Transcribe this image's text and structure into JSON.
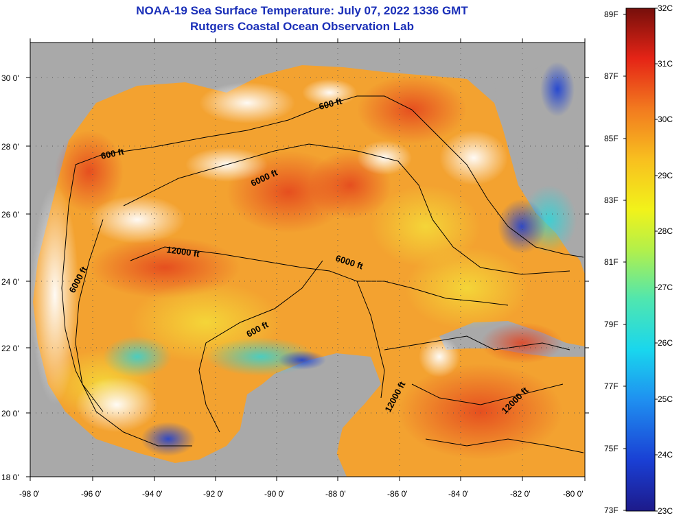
{
  "title": {
    "line1": "NOAA-19 Sea Surface Temperature:  July 07, 2022 1336 GMT",
    "line2": "Rutgers Coastal Ocean Observation Lab"
  },
  "map": {
    "lat_labels": [
      "30 0'",
      "28 0'",
      "26 0'",
      "24 0'",
      "22 0'",
      "20 0'",
      "18 0'"
    ],
    "lon_labels": [
      "-98 0'",
      "-96 0'",
      "-94 0'",
      "-92 0'",
      "-90 0'",
      "-88 0'",
      "-86 0'",
      "-84 0'",
      "-82 0'",
      "-80 0'"
    ],
    "contour_labels": [
      "600 ft",
      "600 ft",
      "6000 ft",
      "12000 ft",
      "6000 ft",
      "6000 ft",
      "600 ft",
      "12000 ft",
      "12000 ft"
    ],
    "colors": {
      "land": "#a9a9a9",
      "cloud": "#ffffff",
      "warm": "#f07a20",
      "hot": "#e63a1c",
      "mid": "#f6c431",
      "cool": "#3fd0c8",
      "cold": "#1a48d6"
    }
  },
  "colorbar": {
    "fahrenheit": [
      "89F",
      "87F",
      "85F",
      "83F",
      "81F",
      "79F",
      "77F",
      "75F",
      "73F"
    ],
    "celsius": [
      "32C",
      "31C",
      "30C",
      "29C",
      "28C",
      "27C",
      "26C",
      "25C",
      "24C",
      "23C"
    ]
  }
}
